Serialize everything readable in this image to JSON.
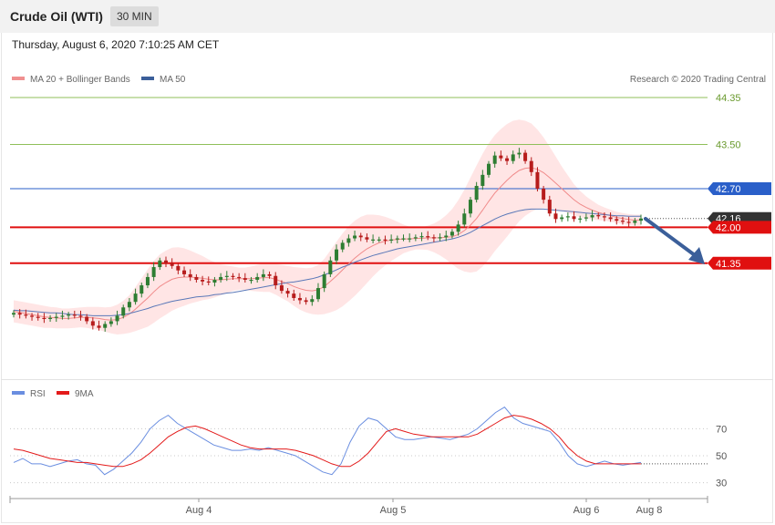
{
  "header": {
    "title": "Crude Oil (WTI)",
    "timeframe": "30 MIN"
  },
  "date": "Thursday, August 6, 2020 7:10:25 AM CET",
  "legend": {
    "ma20": "MA 20 + Bollinger Bands",
    "ma50": "MA 50",
    "rsi": "RSI",
    "ma9": "9MA",
    "credit": "Research © 2020 Trading Central"
  },
  "colors": {
    "band": "#ffe1e1",
    "ma20": "#f08a8a",
    "ma50": "#5a78b8",
    "up": "#2e7d32",
    "down": "#b71c1c",
    "resistance_green": "#8fbf5a",
    "blue_level": "#2a5fc9",
    "red_level": "#e01010",
    "arrow": "#3b5f9a",
    "rsi": "#6a8ee0",
    "rsi_ma": "#e31a1a",
    "current": "#333333"
  },
  "chart_data": [
    {
      "type": "candlestick",
      "name": "price",
      "x_ticks": [
        "Aug 4",
        "Aug 5",
        "Aug 6",
        "Aug 8"
      ],
      "ylim": [
        40.0,
        44.7
      ],
      "levels": [
        {
          "label": "44.35",
          "value": 44.35,
          "style": "green"
        },
        {
          "label": "43.50",
          "value": 43.5,
          "style": "green"
        },
        {
          "label": "42.70",
          "value": 42.7,
          "style": "blue"
        },
        {
          "label": "42.16",
          "value": 42.16,
          "style": "current"
        },
        {
          "label": "42.00",
          "value": 42.0,
          "style": "red"
        },
        {
          "label": "41.35",
          "value": 41.35,
          "style": "red"
        }
      ],
      "close": [
        40.45,
        40.42,
        40.4,
        40.38,
        40.36,
        40.34,
        40.36,
        40.38,
        40.4,
        40.42,
        40.4,
        40.38,
        40.3,
        40.22,
        40.18,
        40.25,
        40.3,
        40.4,
        40.55,
        40.65,
        40.8,
        40.95,
        41.1,
        41.28,
        41.4,
        41.35,
        41.3,
        41.22,
        41.15,
        41.1,
        41.05,
        41.02,
        41.0,
        41.05,
        41.1,
        41.12,
        41.1,
        41.08,
        41.05,
        41.05,
        41.1,
        41.15,
        41.12,
        40.95,
        40.85,
        40.8,
        40.72,
        40.68,
        40.65,
        40.7,
        40.9,
        41.15,
        41.4,
        41.6,
        41.72,
        41.8,
        41.85,
        41.82,
        41.78,
        41.78,
        41.78,
        41.76,
        41.78,
        41.8,
        41.8,
        41.8,
        41.82,
        41.84,
        41.82,
        41.8,
        41.82,
        41.85,
        41.92,
        42.05,
        42.25,
        42.5,
        42.75,
        42.95,
        43.15,
        43.3,
        43.25,
        43.2,
        43.32,
        43.35,
        43.2,
        43.0,
        42.7,
        42.5,
        42.25,
        42.15,
        42.18,
        42.2,
        42.15,
        42.16,
        42.18,
        42.22,
        42.2,
        42.18,
        42.15,
        42.12,
        42.1,
        42.08,
        42.12,
        42.16
      ],
      "ma20": [
        40.48,
        40.46,
        40.44,
        40.42,
        40.4,
        40.38,
        40.37,
        40.36,
        40.35,
        40.35,
        40.36,
        40.37,
        40.37,
        40.36,
        40.35,
        40.33,
        40.32,
        40.33,
        40.37,
        40.43,
        40.52,
        40.62,
        40.72,
        40.83,
        40.93,
        41.0,
        41.06,
        41.09,
        41.1,
        41.1,
        41.09,
        41.08,
        41.06,
        41.05,
        41.05,
        41.06,
        41.07,
        41.07,
        41.07,
        41.07,
        41.08,
        41.09,
        41.09,
        41.06,
        41.02,
        40.98,
        40.93,
        40.89,
        40.86,
        40.85,
        40.87,
        40.93,
        41.02,
        41.12,
        41.23,
        41.34,
        41.44,
        41.53,
        41.61,
        41.67,
        41.72,
        41.75,
        41.77,
        41.78,
        41.79,
        41.79,
        41.8,
        41.8,
        41.81,
        41.81,
        41.81,
        41.82,
        41.83,
        41.87,
        41.94,
        42.04,
        42.16,
        42.31,
        42.47,
        42.62,
        42.74,
        42.85,
        42.95,
        43.03,
        43.07,
        43.08,
        43.05,
        42.99,
        42.9,
        42.8,
        42.7,
        42.6,
        42.5,
        42.42,
        42.36,
        42.31,
        42.27,
        42.24,
        42.21,
        42.18,
        42.16,
        42.14,
        42.13,
        42.13
      ],
      "ma50": [
        40.5,
        40.49,
        40.49,
        40.48,
        40.47,
        40.46,
        40.45,
        40.45,
        40.44,
        40.43,
        40.42,
        40.42,
        40.41,
        40.4,
        40.4,
        40.4,
        40.4,
        40.41,
        40.42,
        40.44,
        40.47,
        40.5,
        40.53,
        40.57,
        40.6,
        40.63,
        40.66,
        40.68,
        40.7,
        40.72,
        40.74,
        40.75,
        40.76,
        40.78,
        40.79,
        40.81,
        40.82,
        40.84,
        40.86,
        40.88,
        40.9,
        40.92,
        40.94,
        40.96,
        40.98,
        41.0,
        41.01,
        41.03,
        41.05,
        41.07,
        41.1,
        41.14,
        41.18,
        41.23,
        41.28,
        41.32,
        41.37,
        41.41,
        41.45,
        41.49,
        41.52,
        41.55,
        41.58,
        41.61,
        41.63,
        41.65,
        41.67,
        41.69,
        41.71,
        41.73,
        41.75,
        41.77,
        41.79,
        41.82,
        41.86,
        41.91,
        41.97,
        42.03,
        42.09,
        42.15,
        42.2,
        42.24,
        42.27,
        42.3,
        42.32,
        42.33,
        42.33,
        42.33,
        42.32,
        42.31,
        42.3,
        42.29,
        42.28,
        42.27,
        42.26,
        42.25,
        42.24,
        42.23,
        42.22,
        42.21,
        42.21,
        42.2,
        42.2,
        42.2
      ],
      "bb_width": [
        0.2,
        0.2,
        0.2,
        0.2,
        0.2,
        0.2,
        0.19,
        0.19,
        0.18,
        0.18,
        0.18,
        0.18,
        0.19,
        0.2,
        0.21,
        0.22,
        0.24,
        0.27,
        0.3,
        0.34,
        0.4,
        0.46,
        0.52,
        0.56,
        0.58,
        0.58,
        0.57,
        0.55,
        0.52,
        0.48,
        0.44,
        0.4,
        0.36,
        0.32,
        0.28,
        0.25,
        0.22,
        0.2,
        0.2,
        0.22,
        0.24,
        0.26,
        0.26,
        0.28,
        0.3,
        0.32,
        0.35,
        0.38,
        0.4,
        0.42,
        0.45,
        0.5,
        0.56,
        0.62,
        0.66,
        0.68,
        0.68,
        0.66,
        0.62,
        0.56,
        0.5,
        0.44,
        0.38,
        0.32,
        0.26,
        0.22,
        0.2,
        0.2,
        0.22,
        0.26,
        0.32,
        0.4,
        0.5,
        0.62,
        0.74,
        0.86,
        0.96,
        1.02,
        1.05,
        1.05,
        1.04,
        1.02,
        0.98,
        0.92,
        0.86,
        0.8,
        0.72,
        0.64,
        0.56,
        0.48,
        0.4,
        0.34,
        0.28,
        0.24,
        0.2,
        0.17,
        0.14,
        0.12,
        0.11,
        0.1,
        0.1,
        0.1,
        0.1,
        0.1
      ]
    },
    {
      "type": "line",
      "name": "rsi",
      "ylim": [
        20,
        90
      ],
      "y_ticks": [
        30,
        50,
        70
      ],
      "series": [
        {
          "name": "RSI",
          "values": [
            45,
            48,
            44,
            44,
            42,
            44,
            46,
            47,
            44,
            43,
            36,
            40,
            46,
            52,
            60,
            70,
            76,
            80,
            74,
            70,
            66,
            62,
            58,
            56,
            54,
            54,
            55,
            54,
            56,
            54,
            52,
            50,
            46,
            42,
            38,
            36,
            44,
            60,
            72,
            78,
            76,
            70,
            64,
            62,
            62,
            63,
            64,
            63,
            62,
            64,
            66,
            70,
            76,
            82,
            86,
            78,
            74,
            72,
            70,
            68,
            60,
            50,
            44,
            42,
            44,
            46,
            44,
            43,
            44,
            45
          ]
        },
        {
          "name": "9MA",
          "values": [
            55,
            54,
            52,
            50,
            48,
            47,
            46,
            45,
            45,
            44,
            43,
            42,
            42,
            44,
            47,
            52,
            58,
            64,
            68,
            71,
            72,
            70,
            67,
            64,
            61,
            58,
            56,
            55,
            55,
            55,
            55,
            54,
            52,
            50,
            47,
            44,
            42,
            42,
            46,
            52,
            60,
            68,
            70,
            68,
            66,
            65,
            64,
            64,
            64,
            64,
            64,
            66,
            70,
            74,
            78,
            80,
            79,
            77,
            74,
            70,
            64,
            56,
            50,
            46,
            44,
            44,
            44,
            44,
            44,
            44
          ]
        }
      ]
    }
  ]
}
